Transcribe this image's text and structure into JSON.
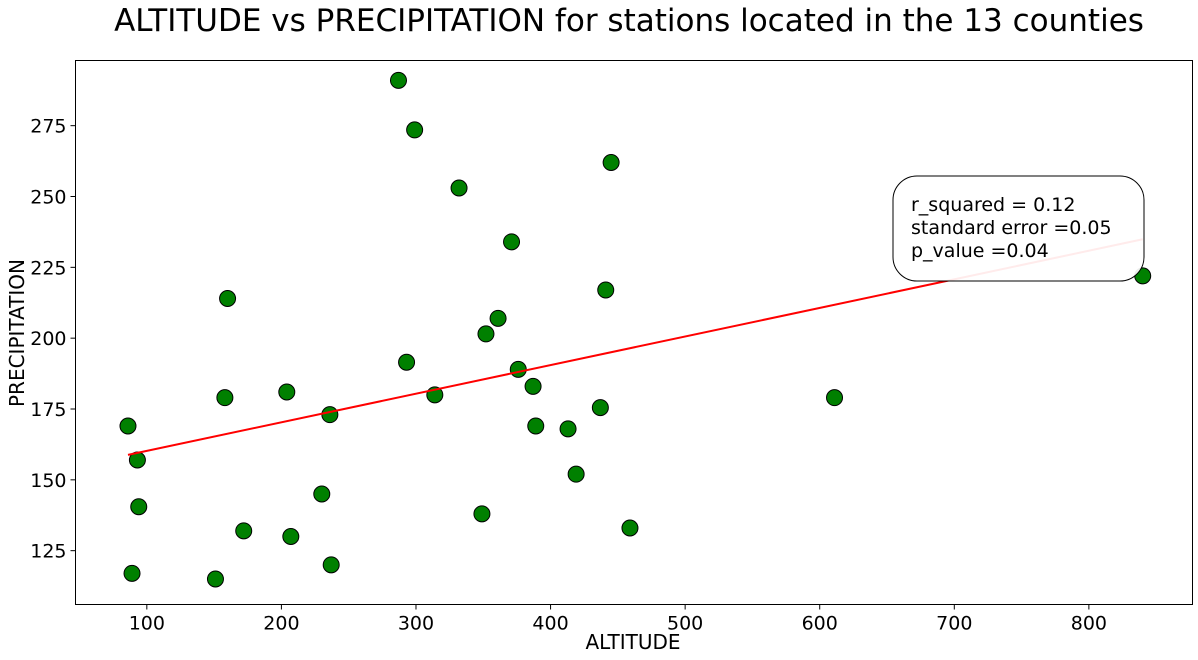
{
  "chart_data": {
    "type": "scatter",
    "title": "ALTITUDE vs PRECIPITATION for stations located in the 13 counties",
    "xlabel": "ALTITUDE",
    "ylabel": "PRECIPITATION",
    "xlim": [
      47,
      877
    ],
    "ylim": [
      106,
      298
    ],
    "x_ticks": [
      100,
      200,
      300,
      400,
      500,
      600,
      700,
      800
    ],
    "y_ticks": [
      125,
      150,
      175,
      200,
      225,
      250,
      275
    ],
    "marker_color": "#008000",
    "marker_edge_color": "#000000",
    "line_color": "#ff0000",
    "grid": false,
    "points": [
      {
        "x": 86,
        "y": 169
      },
      {
        "x": 89,
        "y": 117
      },
      {
        "x": 93,
        "y": 157
      },
      {
        "x": 94,
        "y": 140.5
      },
      {
        "x": 151,
        "y": 115
      },
      {
        "x": 158,
        "y": 179
      },
      {
        "x": 160,
        "y": 214
      },
      {
        "x": 172,
        "y": 132
      },
      {
        "x": 204,
        "y": 181
      },
      {
        "x": 207,
        "y": 130
      },
      {
        "x": 230,
        "y": 145
      },
      {
        "x": 236,
        "y": 173
      },
      {
        "x": 237,
        "y": 120
      },
      {
        "x": 287,
        "y": 291
      },
      {
        "x": 293,
        "y": 191.5
      },
      {
        "x": 299,
        "y": 273.5
      },
      {
        "x": 314,
        "y": 180
      },
      {
        "x": 332,
        "y": 253
      },
      {
        "x": 349,
        "y": 138
      },
      {
        "x": 352,
        "y": 201.5
      },
      {
        "x": 361,
        "y": 207
      },
      {
        "x": 371,
        "y": 234
      },
      {
        "x": 376,
        "y": 189
      },
      {
        "x": 387,
        "y": 183
      },
      {
        "x": 389,
        "y": 169
      },
      {
        "x": 413,
        "y": 168
      },
      {
        "x": 419,
        "y": 152
      },
      {
        "x": 437,
        "y": 175.5
      },
      {
        "x": 441,
        "y": 217
      },
      {
        "x": 445,
        "y": 262
      },
      {
        "x": 459,
        "y": 133
      },
      {
        "x": 611,
        "y": 179
      },
      {
        "x": 840,
        "y": 222
      }
    ],
    "regression_line": {
      "x": [
        86,
        840
      ],
      "y": [
        158.8,
        234.9
      ]
    },
    "annotation": {
      "lines": [
        "r_squared = 0.12",
        "standard error =0.05",
        "p_value =0.04"
      ],
      "position": "upper-right"
    }
  }
}
